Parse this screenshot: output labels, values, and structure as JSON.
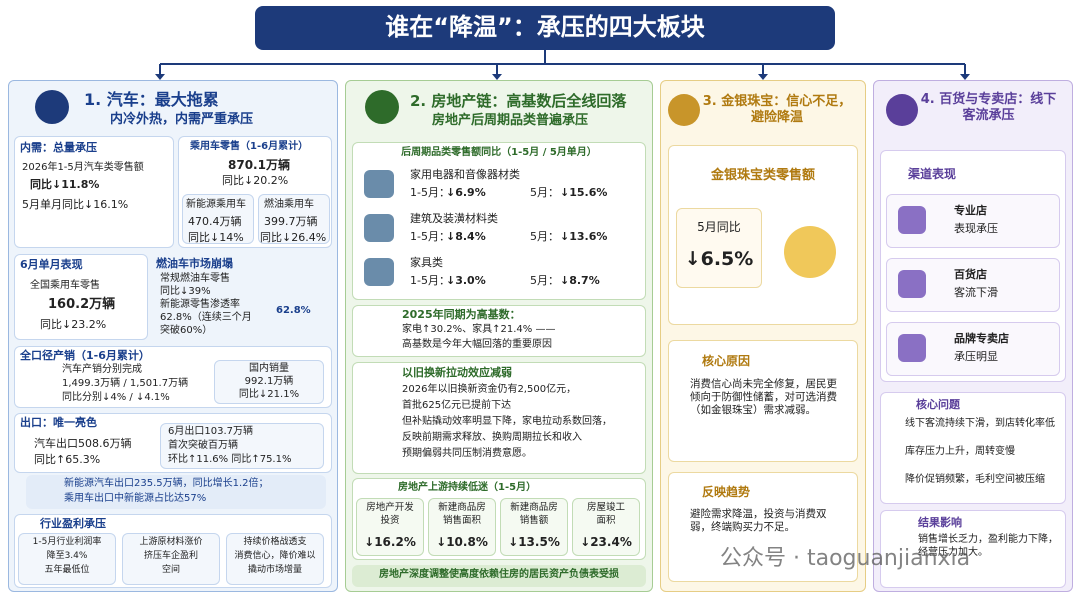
{
  "title": "谁在“降温”：承压的四大板块",
  "auto": {
    "heading": "1. 汽车：最大拖累",
    "subheading": "内冷外热，内需严重承压",
    "domestic": {
      "title": "内需：总量承压",
      "lines": [
        "2026年1-5月汽车类零售额",
        "同比↓11.8%",
        "5月单月同比↓16.1%"
      ]
    },
    "passenger": {
      "title": "乘用车零售（1-6月累计）",
      "total": "870.1万辆",
      "total_change": "同比↓20.2%",
      "nev": {
        "name": "新能源乘用车",
        "volume": "470.4万辆",
        "change": "同比↓14%"
      },
      "fuel": {
        "name": "燃油乘用车",
        "volume": "399.7万辆",
        "change": "同比↓26.4%"
      }
    },
    "june": {
      "title": "6月单月表现",
      "label": "全国乘用车零售",
      "volume": "160.2万辆",
      "change": "同比↓23.2%"
    },
    "collapse": {
      "title": "燃油车市场崩塌",
      "lines": [
        "常规燃油车零售",
        "同比↓39%",
        "新能源零售渗透率",
        "62.8%（连续三个月",
        "突破60%）"
      ],
      "donut": {
        "value": 62.8,
        "label": "62.8%"
      }
    },
    "production": {
      "title": "全口径产销（1-6月累计）",
      "lines": [
        "汽车产销分别完成",
        "1,499.3万辆 / 1,501.7万辆",
        "同比分别↓4% / ↓4.1%"
      ],
      "domestic": [
        "国内销量",
        "992.1万辆",
        "同比↓21.1%"
      ]
    },
    "export": {
      "title": "出口：唯一亮色",
      "lines": [
        "汽车出口508.6万辆",
        "同比↑65.3%"
      ],
      "june": [
        "6月出口103.7万辆",
        "首次突破百万辆",
        "环比↑11.6%  同比↑75.1%"
      ],
      "nev": [
        "新能源汽车出口235.5万辆，同比增长1.2倍；",
        "乘用车出口中新能源占比达57%"
      ]
    },
    "profit": {
      "title": "行业盈利承压",
      "items": [
        [
          "1-5月行业利润率",
          "降至3.4%",
          "五年最低位"
        ],
        [
          "上游原材料涨价",
          "挤压车企盈利",
          "空间"
        ],
        [
          "持续价格战透支",
          "消费信心，降价难以",
          "撬动市场增量"
        ]
      ]
    }
  },
  "property": {
    "heading": "2. 房地产链：高基数后全线回落",
    "subheading": "房地产后周期品类普遍承压",
    "retail": {
      "title": "后周期品类零售额同比（1-5月 / 5月单月）",
      "rows": [
        {
          "name": "家用电器和音像器材类",
          "label1": "1-5月：",
          "value1": "↓6.9%",
          "label2": "5月：",
          "value2": "↓15.6%"
        },
        {
          "name": "建筑及装潢材料类",
          "label1": "1-5月：",
          "value1": "↓8.4%",
          "label2": "5月：",
          "value2": "↓13.6%"
        },
        {
          "name": "家具类",
          "label1": "1-5月：",
          "value1": "↓3.0%",
          "label2": "5月：",
          "value2": "↓8.7%"
        }
      ]
    },
    "base": {
      "title": "2025年同期为高基数：",
      "lines": [
        "家电↑30.2%、家具↑21.4% ——",
        "高基数是今年大幅回落的重要原因"
      ]
    },
    "tradein": {
      "title": "以旧换新拉动效应减弱",
      "lines": [
        "2026年以旧换新资金仍有2,500亿元，",
        "首批625亿元已提前下达",
        "但补贴撬动效率明显下降，家电拉动系数回落，",
        "反映前期需求释放、换购周期拉长和收入",
        "预期偏弱共同压制消费意愿。"
      ]
    },
    "upstream": {
      "title": "房地产上游持续低迷（1-5月）",
      "items": [
        {
          "name": [
            "房地产开发",
            "投资"
          ],
          "value": "↓16.2%"
        },
        {
          "name": [
            "新建商品房",
            "销售面积"
          ],
          "value": "↓10.8%"
        },
        {
          "name": [
            "新建商品房",
            "销售额"
          ],
          "value": "↓13.5%"
        },
        {
          "name": [
            "房屋竣工",
            "面积"
          ],
          "value": "↓23.4%"
        }
      ]
    },
    "footer": "房地产深度调整使高度依赖住房的居民资产负债表受损"
  },
  "jewelry": {
    "heading": "3. 金银珠宝：信心不足，避险降温",
    "metric": "金银珠宝类零售额",
    "period": "5月同比",
    "value": "↓6.5%",
    "reason": {
      "title": "核心原因",
      "text": "消费信心尚未完全修复，居民更倾向于防御性储蓄，对可选消费（如金银珠宝）需求减弱。"
    },
    "trend": {
      "title": "反映趋势",
      "text": "避险需求降温，投资与消费双弱，终端购买力不足。"
    }
  },
  "retail": {
    "heading": "4. 百货与专卖店：线下客流承压",
    "channel_title": "渠道表现",
    "channels": [
      {
        "name": "专业店",
        "desc": "表现承压"
      },
      {
        "name": "百货店",
        "desc": "客流下滑"
      },
      {
        "name": "品牌专卖店",
        "desc": "承压明显"
      }
    ],
    "issues": {
      "title": "核心问题",
      "items": [
        "线下客流持续下滑，到店转化率低",
        "库存压力上升，周转变慢",
        "降价促销频繁，毛利空间被压缩"
      ]
    },
    "impact": {
      "title": "结果影响",
      "text": "销售增长乏力，盈利能力下降，经营压力加大。"
    }
  },
  "watermark": "公众号 · taoguanjianxia"
}
